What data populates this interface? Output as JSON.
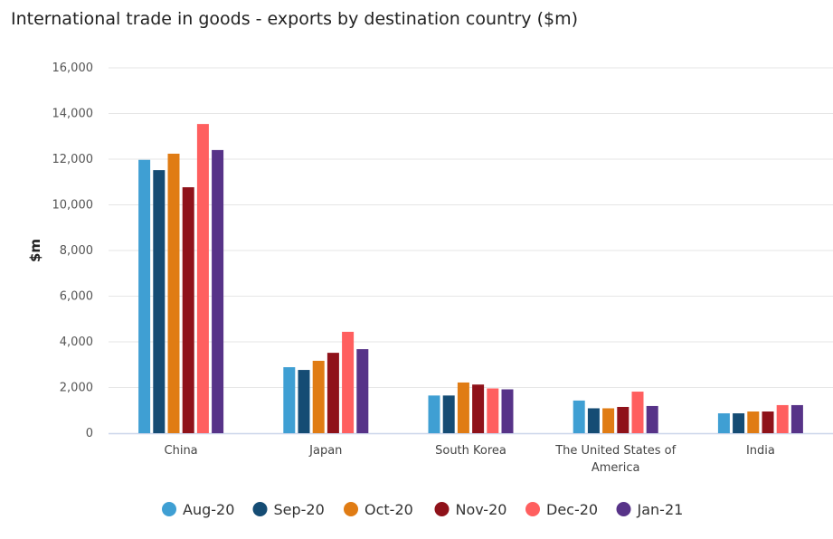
{
  "chart_data": {
    "type": "bar",
    "title": "International trade in goods - exports by destination country ($m)",
    "xlabel": "",
    "ylabel": "$m",
    "ylim": [
      0,
      16000
    ],
    "yticks": [
      "0",
      "2,000",
      "4,000",
      "6,000",
      "8,000",
      "10,000",
      "12,000",
      "14,000",
      "16,000"
    ],
    "grid": true,
    "legend": "bottom",
    "categories": [
      "China",
      "Japan",
      "South Korea",
      "The United States of America",
      "India"
    ],
    "series": [
      {
        "name": "Aug-20",
        "color": "#3f9fd3",
        "values": [
          11970,
          2890,
          1650,
          1430,
          870
        ]
      },
      {
        "name": "Sep-20",
        "color": "#154c74",
        "values": [
          11520,
          2770,
          1650,
          1090,
          870
        ]
      },
      {
        "name": "Oct-20",
        "color": "#e07c14",
        "values": [
          12240,
          3170,
          2220,
          1090,
          950
        ]
      },
      {
        "name": "Nov-20",
        "color": "#8f121a",
        "values": [
          10770,
          3520,
          2130,
          1150,
          950
        ]
      },
      {
        "name": "Dec-20",
        "color": "#ff5f5f",
        "values": [
          13540,
          4440,
          1960,
          1820,
          1230
        ]
      },
      {
        "name": "Jan-21",
        "color": "#573388",
        "values": [
          12400,
          3680,
          1920,
          1190,
          1230
        ]
      }
    ]
  }
}
